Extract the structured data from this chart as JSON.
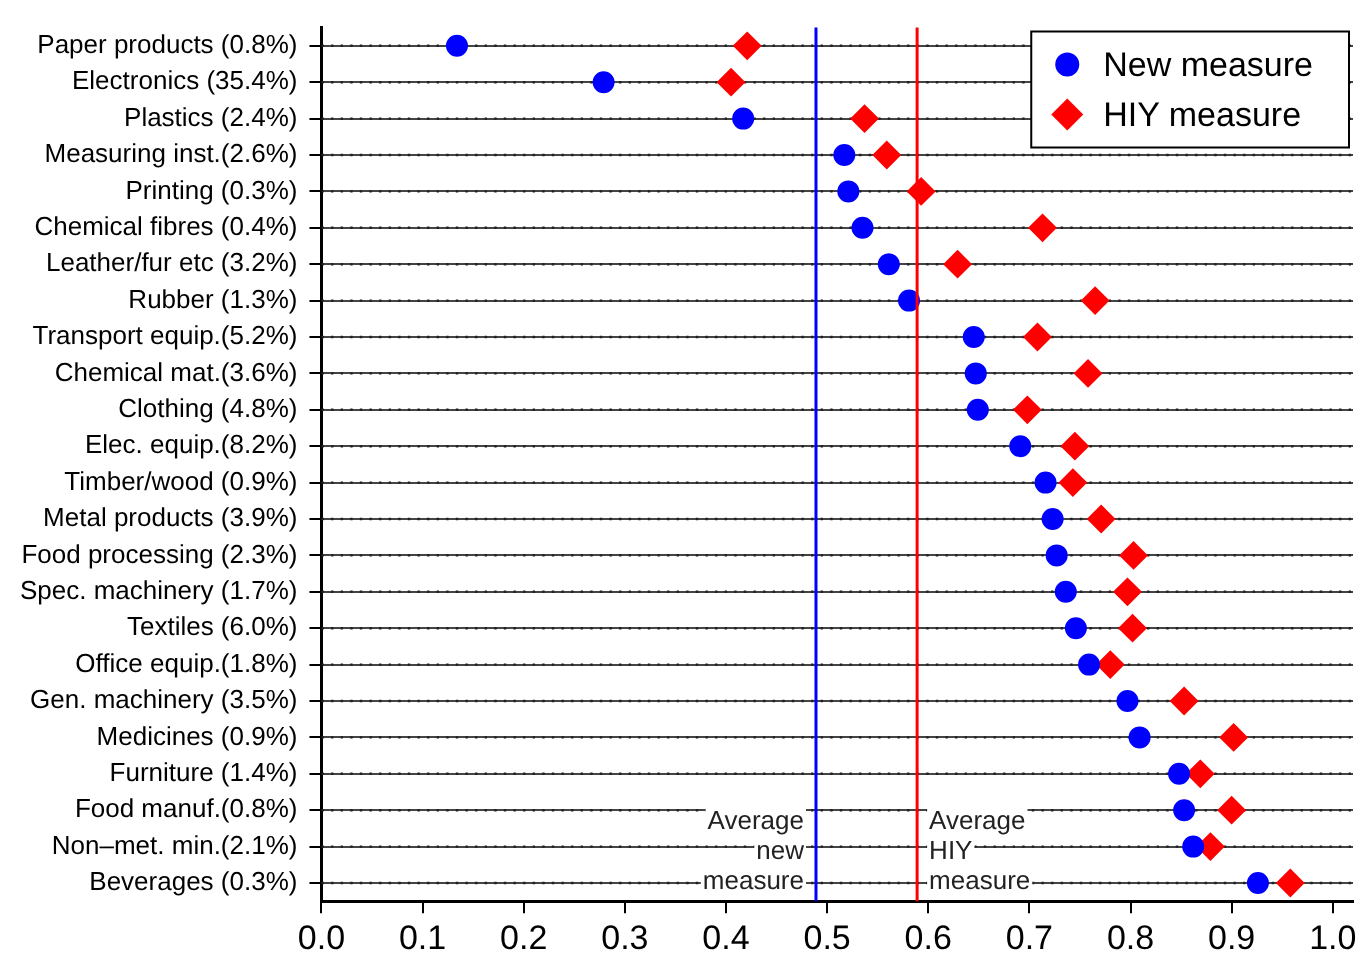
{
  "chart_data": {
    "type": "scatter",
    "orientation": "horizontal",
    "categories": [
      "Paper products (0.8%)",
      "Electronics (35.4%)",
      "Plastics (2.4%)",
      "Measuring inst.(2.6%)",
      "Printing (0.3%)",
      "Chemical fibres (0.4%)",
      "Leather/fur etc (3.2%)",
      "Rubber (1.3%)",
      "Transport equip.(5.2%)",
      "Chemical mat.(3.6%)",
      "Clothing (4.8%)",
      "Elec. equip.(8.2%)",
      "Timber/wood (0.9%)",
      "Metal products (3.9%)",
      "Food processing (2.3%)",
      "Spec. machinery (1.7%)",
      "Textiles (6.0%)",
      "Office equip.(1.8%)",
      "Gen. machinery (3.5%)",
      "Medicines (0.9%)",
      "Furniture (1.4%)",
      "Food manuf.(0.8%)",
      "Non–met. min.(2.1%)",
      "Beverages (0.3%)"
    ],
    "series": [
      {
        "name": "New measure",
        "color": "#0000ff",
        "marker": "circle",
        "values": [
          0.134,
          0.279,
          0.417,
          0.517,
          0.521,
          0.535,
          0.561,
          0.581,
          0.645,
          0.647,
          0.649,
          0.691,
          0.716,
          0.723,
          0.727,
          0.736,
          0.746,
          0.759,
          0.797,
          0.809,
          0.848,
          0.853,
          0.862,
          0.926
        ]
      },
      {
        "name": "HIY measure",
        "color": "#ff0000",
        "marker": "diamond",
        "values": [
          0.421,
          0.405,
          0.537,
          0.559,
          0.593,
          0.713,
          0.629,
          0.765,
          0.708,
          0.758,
          0.698,
          0.745,
          0.743,
          0.771,
          0.803,
          0.797,
          0.802,
          0.78,
          0.853,
          0.902,
          0.869,
          0.9,
          0.879,
          0.958
        ]
      }
    ],
    "xlim": [
      0,
      1.02
    ],
    "xticks": [
      {
        "value": 0,
        "label": "0.0"
      },
      0.1,
      0.2,
      0.3,
      0.4,
      0.5,
      0.6,
      0.7,
      0.8,
      0.9,
      {
        "value": 1,
        "label": "1.0"
      }
    ],
    "grid": "y",
    "legend": "top right",
    "ref_lines": [
      {
        "axis": "x",
        "value": 0.489,
        "label": "Average\nnew\nmeasure",
        "color": "#0000ff"
      },
      {
        "axis": "x",
        "value": 0.589,
        "label": "Average\nHIY\nmeasure",
        "color": "#ff0000"
      }
    ]
  }
}
